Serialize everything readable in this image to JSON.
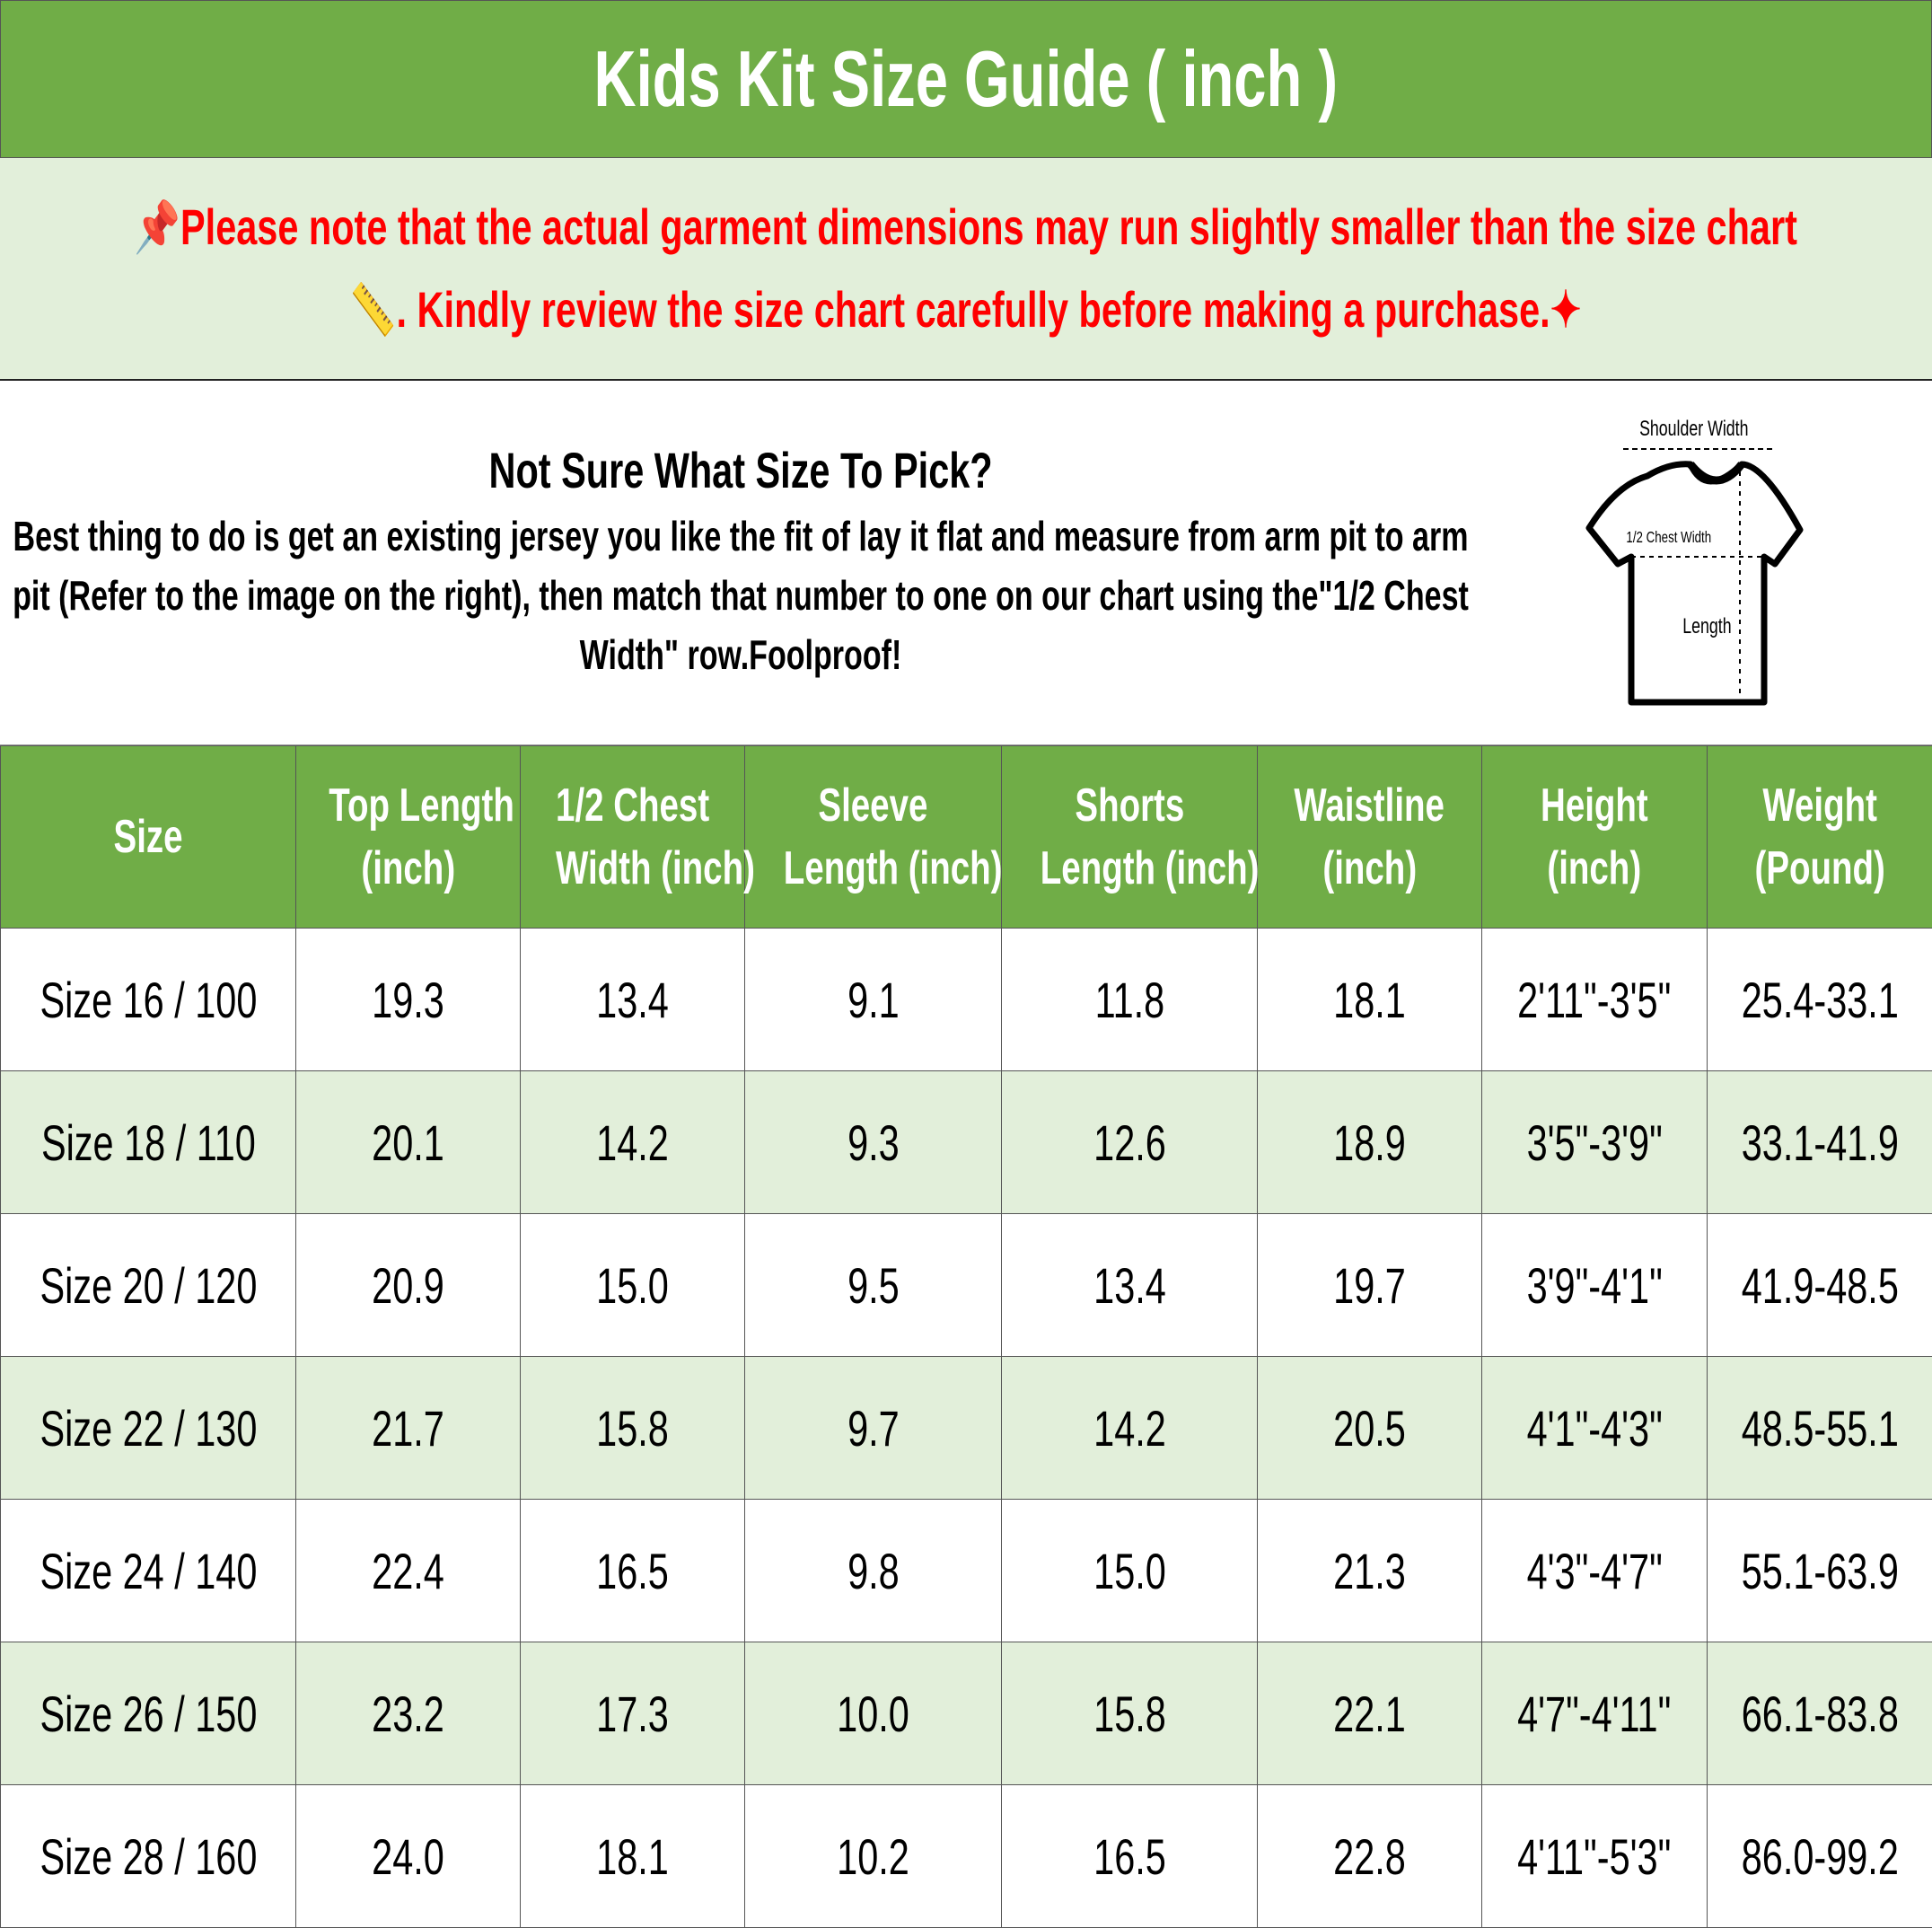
{
  "title": "Kids Kit Size Guide ( inch )",
  "notice": {
    "line1": "Please note that the actual garment dimensions may run slightly smaller than the size chart",
    "line2": ". Kindly review the size chart carefully before making a purchase.",
    "icons": [
      "pushpin-icon",
      "ruler-icon",
      "sparkles-icon"
    ],
    "color": "#ff0000"
  },
  "info": {
    "heading": "Not Sure What Size To Pick?",
    "body": "Best thing to do is get an existing jersey you like the fit of lay it flat and measure from arm pit to arm pit (Refer to the image on the right), then match that number to one on our chart using the\"1/2 Chest Width\" row.Foolproof!"
  },
  "diagram": {
    "shoulder": "Shoulder Width",
    "chest": "1/2 Chest Width",
    "length": "Length"
  },
  "colors": {
    "green": "#70ad47",
    "light_green": "#e2efda"
  },
  "table": {
    "headers": [
      [
        "Size"
      ],
      [
        "Top Length",
        "(inch)"
      ],
      [
        "1/2 Chest",
        "Width (inch)"
      ],
      [
        "Sleeve",
        "Length (inch)"
      ],
      [
        "Shorts",
        "Length (inch)"
      ],
      [
        "Waistline",
        "(inch)"
      ],
      [
        "Height",
        "(inch)"
      ],
      [
        "Weight",
        "(Pound)"
      ]
    ],
    "rows": [
      [
        "Size 16 / 100",
        "19.3",
        "13.4",
        "9.1",
        "11.8",
        "18.1",
        "2'11\"-3'5\"",
        "25.4-33.1"
      ],
      [
        "Size 18 / 110",
        "20.1",
        "14.2",
        "9.3",
        "12.6",
        "18.9",
        "3'5\"-3'9\"",
        "33.1-41.9"
      ],
      [
        "Size 20 / 120",
        "20.9",
        "15.0",
        "9.5",
        "13.4",
        "19.7",
        "3'9\"-4'1\"",
        "41.9-48.5"
      ],
      [
        "Size 22 / 130",
        "21.7",
        "15.8",
        "9.7",
        "14.2",
        "20.5",
        "4'1\"-4'3\"",
        "48.5-55.1"
      ],
      [
        "Size 24 / 140",
        "22.4",
        "16.5",
        "9.8",
        "15.0",
        "21.3",
        "4'3\"-4'7\"",
        "55.1-63.9"
      ],
      [
        "Size 26 / 150",
        "23.2",
        "17.3",
        "10.0",
        "15.8",
        "22.1",
        "4'7\"-4'11\"",
        "66.1-83.8"
      ],
      [
        "Size 28 / 160",
        "24.0",
        "18.1",
        "10.2",
        "16.5",
        "22.8",
        "4'11\"-5'3\"",
        "86.0-99.2"
      ]
    ]
  }
}
